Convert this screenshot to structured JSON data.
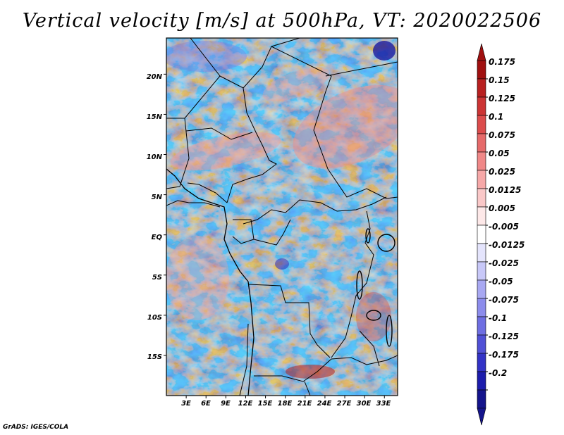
{
  "title": "Vertical velocity [m/s] at 500hPa, VT: 2020022506",
  "credit": "GrADS: IGES/COLA",
  "map": {
    "lon_range": [
      0,
      35
    ],
    "lat_range": [
      -20,
      24.5
    ],
    "lat_labels": [
      "20N",
      "15N",
      "10N",
      "5N",
      "EQ",
      "5S",
      "10S",
      "15S"
    ],
    "lat_values": [
      20,
      15,
      10,
      5,
      0,
      -5,
      -10,
      -15
    ],
    "lon_labels": [
      "3E",
      "6E",
      "9E",
      "12E",
      "15E",
      "18E",
      "21E",
      "24E",
      "27E",
      "30E",
      "33E"
    ],
    "lon_values": [
      3,
      6,
      9,
      12,
      15,
      18,
      21,
      24,
      27,
      30,
      33
    ]
  },
  "colorbar": {
    "levels": [
      "0.175",
      "0.15",
      "0.125",
      "0.1",
      "0.075",
      "0.05",
      "0.025",
      "0.0125",
      "0.005",
      "-0.005",
      "-0.0125",
      "-0.025",
      "-0.05",
      "-0.075",
      "-0.1",
      "-0.125",
      "-0.175",
      "-0.2"
    ],
    "colors": [
      "#a01010",
      "#b82020",
      "#cc3434",
      "#dc4c4c",
      "#e66a6a",
      "#f08888",
      "#f6a8a8",
      "#fac8c8",
      "#fde8e8",
      "#ffffff",
      "#e4e4fc",
      "#c8c8f8",
      "#a8a8f2",
      "#8c8cec",
      "#6e6ee2",
      "#5050d6",
      "#3232c6",
      "#1c1cac",
      "#14148c"
    ],
    "top_arrow_color": "#a01010",
    "bottom_arrow_color": "#14148c"
  }
}
